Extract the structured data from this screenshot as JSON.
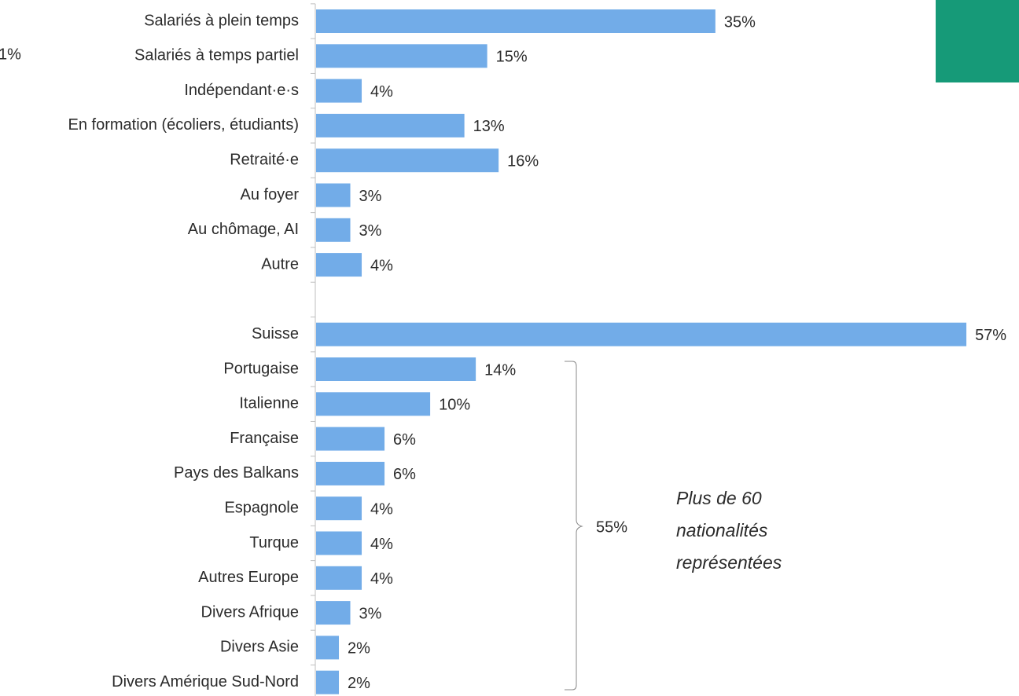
{
  "chart_data": {
    "type": "bar",
    "orientation": "horizontal",
    "color": "#72ace8",
    "categories": [
      "Salariés à plein temps",
      "Salariés à temps partiel",
      "Indépendant·e·s",
      "En formation (écoliers, étudiants)",
      "Retraité·e",
      "Au foyer",
      "Au chômage, AI",
      "Autre",
      null,
      "Suisse",
      "Portugaise",
      "Italienne",
      "Française",
      "Pays des Balkans",
      "Espagnole",
      "Turque",
      "Autres Europe",
      "Divers Afrique",
      "Divers Asie",
      "Divers Amérique Sud-Nord"
    ],
    "values": [
      35,
      15,
      4,
      13,
      16,
      3,
      3,
      4,
      null,
      57,
      14,
      10,
      6,
      6,
      4,
      4,
      4,
      3,
      2,
      2
    ],
    "value_labels": [
      "35%",
      "15%",
      "4%",
      "13%",
      "16%",
      "3%",
      "3%",
      "4%",
      null,
      "57%",
      "14%",
      "10%",
      "6%",
      "6%",
      "4%",
      "4%",
      "4%",
      "3%",
      "2%",
      "2%"
    ],
    "cropped_label": "1%",
    "bracket_label": "55%",
    "note": [
      "Plus de 60",
      "nationalités",
      "représentées"
    ]
  }
}
